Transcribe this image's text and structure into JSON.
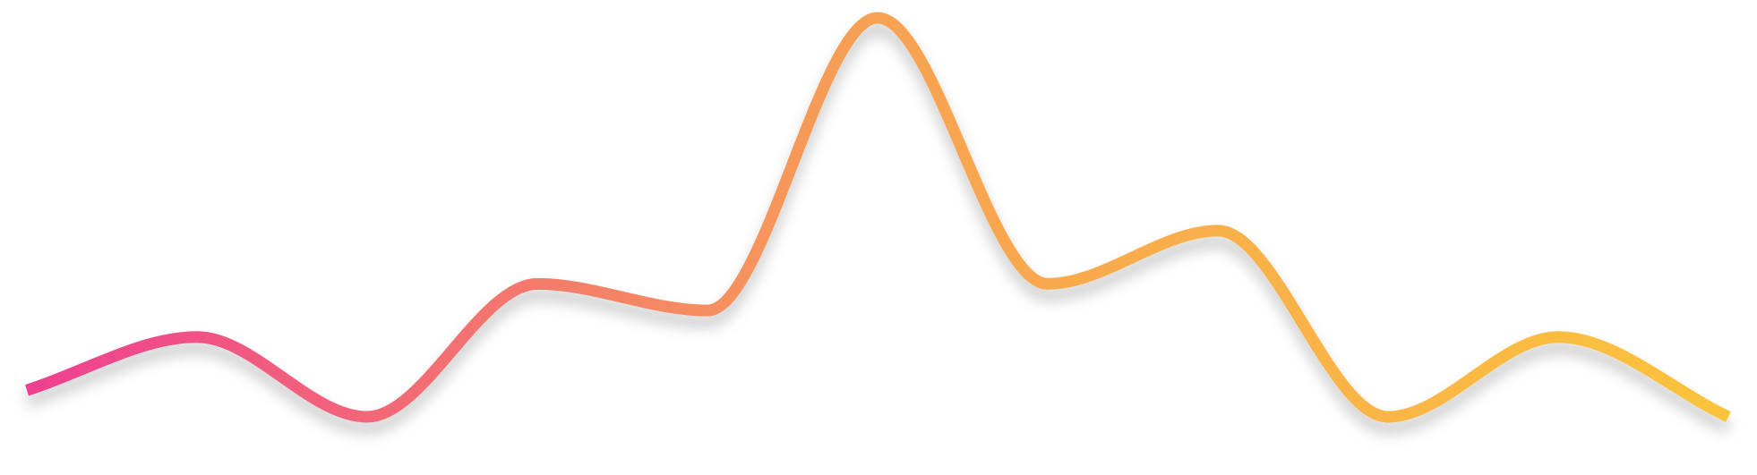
{
  "chart_data": {
    "type": "line",
    "smooth": true,
    "x": [
      0,
      1,
      2,
      3,
      4,
      5,
      6,
      7,
      8,
      9,
      10
    ],
    "series": [
      {
        "values": [
          1,
          3,
          0,
          5,
          4,
          15,
          5,
          7,
          0,
          3,
          0
        ]
      }
    ],
    "ylim": [
      0,
      15
    ],
    "axes_visible": false,
    "grid": false,
    "legend": "none",
    "stroke_gradient": [
      "#ef3f91",
      "#f7a253",
      "#fbc33c"
    ],
    "shadow": true
  }
}
